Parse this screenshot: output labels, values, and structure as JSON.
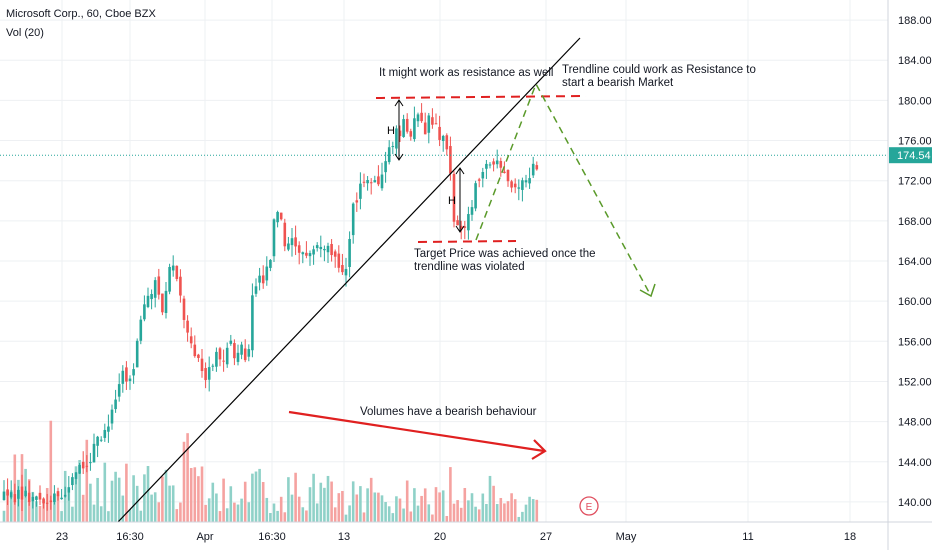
{
  "header": {
    "title": "Microsoft Corp., 60, Cboe BZX",
    "volume_label": "Vol (20)"
  },
  "colors": {
    "up": "#26a69a",
    "down": "#ef5350",
    "vol_up": "#8fd1c8",
    "vol_down": "#f5a2a0",
    "grid": "#eef0f3",
    "black_line": "#000000",
    "red_dash": "#e02020",
    "green_dash": "#5a9a2a",
    "price_tag": "#26a69a",
    "event_marker": "#e05060"
  },
  "chart_data": {
    "type": "candlestick",
    "symbol": "Microsoft Corp., 60, Cboe BZX",
    "ylim": [
      138,
      190
    ],
    "y_ticks": [
      "188.00",
      "184.00",
      "180.00",
      "176.00",
      "172.00",
      "168.00",
      "164.00",
      "160.00",
      "156.00",
      "152.00",
      "148.00",
      "144.00",
      "140.00"
    ],
    "x_ticks": [
      "23",
      "16:30",
      "Apr",
      "16:30",
      "13",
      "20",
      "27",
      "May",
      "11",
      "18"
    ],
    "last_price": "174.54",
    "event_marker": "E",
    "volume_indicator": "Vol (20)",
    "price_path": [
      [
        0,
        140.5
      ],
      [
        0.2,
        141.2
      ],
      [
        0.35,
        142.5
      ],
      [
        0.5,
        144
      ],
      [
        0.6,
        143.2
      ],
      [
        0.8,
        145.5
      ],
      [
        1,
        147
      ],
      [
        1.2,
        148.5
      ],
      [
        1.35,
        150.2
      ],
      [
        1.5,
        152.5
      ],
      [
        1.6,
        151.8
      ],
      [
        1.8,
        154
      ],
      [
        1.95,
        157.5
      ],
      [
        2.1,
        160.5
      ],
      [
        2.3,
        161.5
      ],
      [
        2.5,
        159.5
      ],
      [
        2.65,
        162.5
      ],
      [
        2.75,
        164.5
      ],
      [
        2.9,
        160.8
      ],
      [
        3.05,
        158.5
      ],
      [
        3.2,
        155.5
      ],
      [
        3.4,
        153.5
      ],
      [
        3.6,
        152.5
      ],
      [
        3.8,
        155
      ],
      [
        4,
        153.5
      ],
      [
        4.15,
        156
      ],
      [
        4.3,
        154
      ],
      [
        4.45,
        155
      ],
      [
        4.6,
        153.5
      ],
      [
        4.7,
        160.5
      ],
      [
        4.85,
        161.8
      ],
      [
        5,
        162.5
      ],
      [
        5.15,
        163.5
      ],
      [
        5.3,
        169.5
      ],
      [
        5.45,
        167.5
      ],
      [
        5.6,
        165
      ],
      [
        5.8,
        166
      ],
      [
        6,
        164.5
      ],
      [
        6.2,
        165.2
      ],
      [
        6.4,
        165
      ],
      [
        6.6,
        165.5
      ],
      [
        6.8,
        164.2
      ],
      [
        6.95,
        163.2
      ],
      [
        7.1,
        163.8
      ],
      [
        7.2,
        169.8
      ],
      [
        7.4,
        171
      ],
      [
        7.55,
        172.8
      ],
      [
        7.7,
        171.2
      ],
      [
        7.85,
        171.5
      ],
      [
        8,
        173.5
      ],
      [
        8.1,
        175.2
      ],
      [
        8.3,
        176.8
      ],
      [
        8.5,
        177.8
      ],
      [
        8.65,
        176.2
      ],
      [
        8.8,
        178.5
      ],
      [
        9,
        177
      ],
      [
        9.15,
        178.5
      ],
      [
        9.3,
        177.2
      ],
      [
        9.5,
        175.5
      ],
      [
        9.62,
        173.2
      ],
      [
        9.75,
        167.5
      ],
      [
        9.9,
        166.5
      ],
      [
        10.05,
        168.5
      ],
      [
        10.2,
        170.5
      ],
      [
        10.4,
        172.3
      ],
      [
        10.55,
        173.3
      ],
      [
        10.7,
        174.3
      ],
      [
        10.85,
        174.5
      ],
      [
        11,
        172.5
      ],
      [
        11.2,
        171.5
      ],
      [
        11.4,
        171.8
      ],
      [
        11.6,
        172.8
      ],
      [
        11.75,
        173.5
      ],
      [
        11.85,
        174.54
      ]
    ],
    "volume_scale": 30
  },
  "annotations": {
    "resistance_note": "It might work as resistance as well",
    "trendline_note_1": "Trendline could work as Resistance to",
    "trendline_note_2": "start a bearish Market",
    "target_note_1": "Target Price was achieved once the",
    "target_note_2": "trendline was violated",
    "volume_note": "Volumes have a bearish behaviour",
    "h_label_1": "H",
    "h_label_2": "H"
  }
}
